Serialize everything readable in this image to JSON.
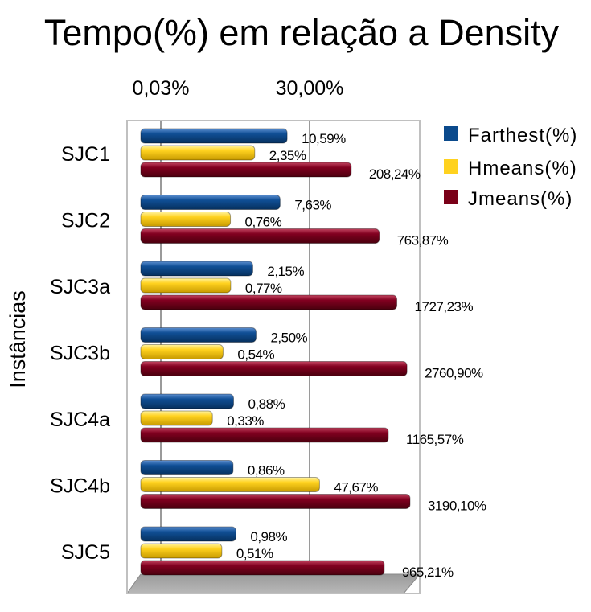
{
  "chart_data": {
    "type": "bar",
    "orientation": "horizontal",
    "scale": "log",
    "title": "Tempo(%) em relação a Density",
    "ylabel": "Instâncias",
    "xlabel": "",
    "x_ticks": [
      "0,03%",
      "30,00%"
    ],
    "x_tick_values": [
      0.03,
      30.0
    ],
    "grid": true,
    "legend_position": "right",
    "categories": [
      "SJC1",
      "SJC2",
      "SJC3a",
      "SJC3b",
      "SJC4a",
      "SJC4b",
      "SJC5"
    ],
    "series": [
      {
        "name": "Farthest(%)",
        "color": "#0b4a8c",
        "values": [
          10.59,
          7.63,
          2.15,
          2.5,
          0.88,
          0.86,
          0.98
        ],
        "labels": [
          "10,59%",
          "7,63%",
          "2,15%",
          "2,50%",
          "0,88%",
          "0,86%",
          "0,98%"
        ]
      },
      {
        "name": "Hmeans(%)",
        "color": "#ffd21f",
        "values": [
          2.35,
          0.76,
          0.77,
          0.54,
          0.33,
          47.67,
          0.51
        ],
        "labels": [
          "2,35%",
          "0,76%",
          "0,77%",
          "0,54%",
          "0,33%",
          "47,67%",
          "0,51%"
        ]
      },
      {
        "name": "Jmeans(%)",
        "color": "#7a0018",
        "values": [
          208.24,
          763.87,
          1727.23,
          2760.9,
          1165.57,
          3190.1,
          965.21
        ],
        "labels": [
          "208,24%",
          "763,87%",
          "1727,23%",
          "2760,90%",
          "1165,57%",
          "3190,10%",
          "965,21%"
        ]
      }
    ]
  }
}
